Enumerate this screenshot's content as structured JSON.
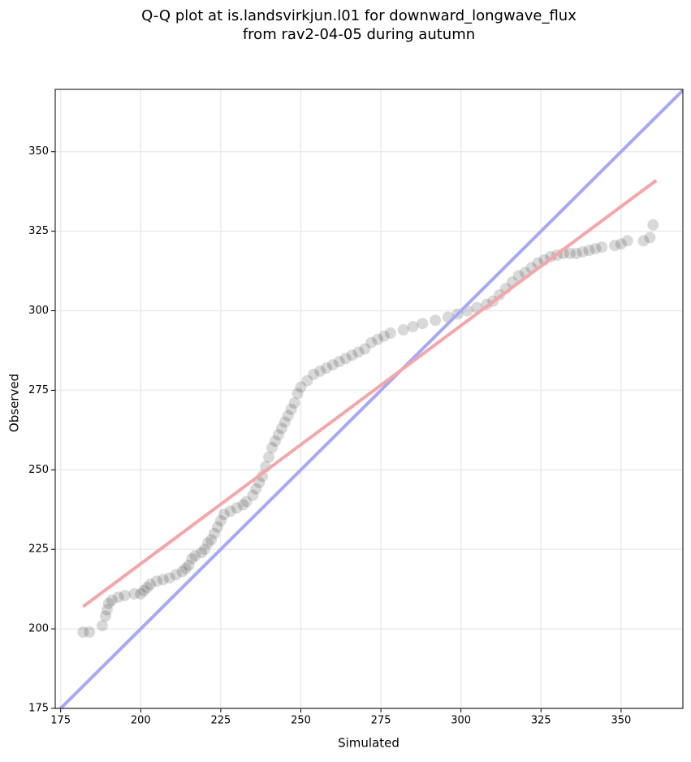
{
  "chart_data": {
    "type": "scatter",
    "title": [
      "Q-Q plot at is.landsvirkjun.l01 for downward_longwave_flux",
      "from rav2-04-05 during autumn"
    ],
    "x_label": "Simulated",
    "y_label": "Observed",
    "xlim": [
      173.3,
      369.3
    ],
    "ylim": [
      175,
      369.6
    ],
    "xticks": [
      175,
      200,
      225,
      250,
      275,
      300,
      325,
      350
    ],
    "yticks": [
      175,
      200,
      225,
      250,
      275,
      300,
      325,
      350
    ],
    "grid": true,
    "points": {
      "color": "#000000",
      "x": [
        182,
        184,
        188,
        189,
        189.5,
        190,
        191,
        193,
        195,
        198,
        200,
        201,
        202,
        203,
        205,
        207,
        209,
        211,
        213,
        214,
        215,
        216,
        217,
        219,
        220,
        221,
        222,
        223,
        224,
        225,
        226,
        228,
        230,
        232,
        233,
        235,
        236,
        237,
        238,
        239,
        240,
        241,
        242,
        243,
        244,
        245,
        246,
        247,
        248,
        249,
        250,
        252,
        254,
        256,
        258,
        260,
        262,
        264,
        266,
        268,
        270,
        272,
        274,
        276,
        278,
        282,
        285,
        288,
        292,
        296,
        299,
        302,
        305,
        308,
        310,
        312,
        314,
        316,
        318,
        320,
        322,
        324,
        326,
        328,
        330,
        332,
        334,
        336,
        338,
        340,
        342,
        344,
        348,
        350,
        352,
        357,
        359,
        360
      ],
      "values": [
        199,
        199,
        201,
        204,
        206,
        208,
        209,
        210,
        210.5,
        211,
        211,
        212,
        213,
        214,
        215,
        215.5,
        216,
        217,
        218,
        219,
        220,
        222,
        223,
        224,
        225,
        227,
        228,
        230,
        232,
        234,
        236,
        237,
        238,
        239,
        240,
        242,
        244,
        246,
        248,
        251,
        254,
        257,
        259,
        261,
        263,
        265,
        267,
        269,
        271,
        274,
        276,
        278,
        280,
        281,
        282,
        283,
        284,
        285,
        286,
        287,
        288,
        290,
        291,
        292,
        293,
        294,
        295,
        296,
        297,
        298,
        299,
        300,
        301,
        302,
        303,
        305,
        307,
        309,
        311,
        312,
        313.5,
        315,
        316,
        317,
        317.5,
        318,
        318,
        318,
        318.5,
        319,
        319.5,
        320,
        320.5,
        321,
        322,
        322,
        323,
        327
      ]
    },
    "fit_line": {
      "color": "#f4a6a8",
      "x": [
        182,
        361
      ],
      "values": [
        207,
        341
      ]
    },
    "reference_line": {
      "color": "#a8a8f8",
      "x": [
        173.3,
        369.3
      ],
      "values": [
        173.3,
        369.3
      ]
    }
  }
}
